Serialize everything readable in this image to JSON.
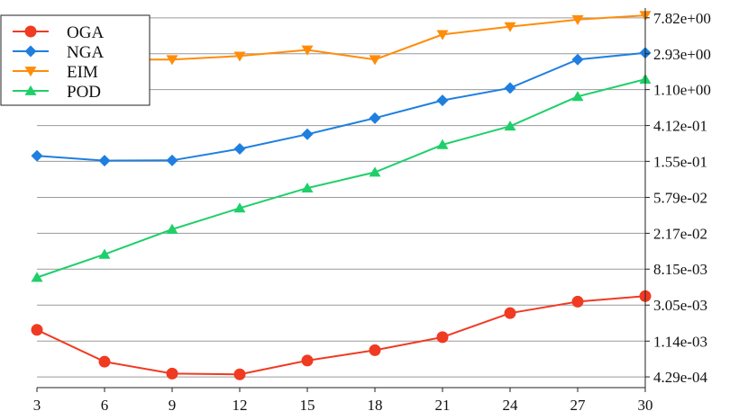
{
  "chart_data": {
    "type": "line",
    "title": "",
    "xlabel": "",
    "ylabel": "",
    "y_scale": "log",
    "x": [
      3,
      6,
      9,
      12,
      15,
      18,
      21,
      24,
      27,
      30
    ],
    "x_tick_labels": [
      "3",
      "6",
      "9",
      "12",
      "15",
      "18",
      "21",
      "24",
      "27",
      "30"
    ],
    "y_ticks": [
      0.000429,
      0.00114,
      0.00305,
      0.00815,
      0.0217,
      0.0579,
      0.155,
      0.412,
      1.1,
      2.93,
      7.82
    ],
    "y_tick_labels": [
      "4.29e-04",
      "1.14e-03",
      "3.05e-03",
      "8.15e-03",
      "2.17e-02",
      "5.79e-02",
      "1.55e-01",
      "4.12e-01",
      "1.10e+00",
      "2.93e+00",
      "7.82e+00"
    ],
    "ylim": [
      0.00032,
      10.2
    ],
    "y_axis_side": "right",
    "grid": "horizontal",
    "legend_position": "top-left",
    "series": [
      {
        "name": "OGA",
        "color": "#f03a22",
        "marker": "circle",
        "values": [
          0.00155,
          0.00065,
          0.00047,
          0.00046,
          0.00067,
          0.00089,
          0.00127,
          0.00245,
          0.00335,
          0.0039
        ]
      },
      {
        "name": "NGA",
        "color": "#1e7fe0",
        "marker": "diamond",
        "values": [
          0.18,
          0.158,
          0.159,
          0.218,
          0.325,
          0.505,
          0.82,
          1.15,
          2.5,
          3.0
        ]
      },
      {
        "name": "EIM",
        "color": "#ff8c0a",
        "marker": "triangle-down",
        "values": [
          2.55,
          2.5,
          2.5,
          2.75,
          3.25,
          2.5,
          4.95,
          6.15,
          7.45,
          8.35
        ]
      },
      {
        "name": "POD",
        "color": "#1fcf6a",
        "marker": "triangle-up",
        "values": [
          0.0065,
          0.0122,
          0.0242,
          0.0432,
          0.0746,
          0.115,
          0.244,
          0.405,
          0.91,
          1.46
        ]
      }
    ]
  }
}
